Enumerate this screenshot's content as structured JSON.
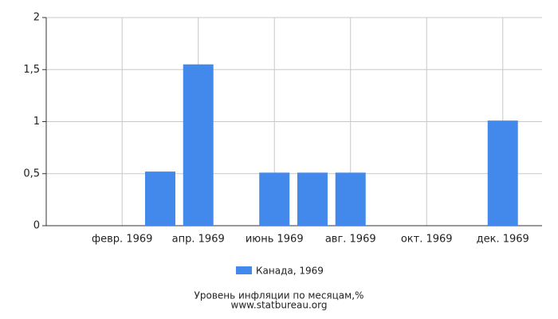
{
  "chart_data": {
    "type": "bar",
    "title": "Уровень инфляции по месяцам,%",
    "source": "www.statbureau.org",
    "categories": [
      null,
      "февр. 1969",
      null,
      "апр. 1969",
      null,
      "июнь 1969",
      null,
      "авг. 1969",
      null,
      "окт. 1969",
      null,
      "дек. 1969"
    ],
    "series": [
      {
        "name": "Канада, 1969",
        "color": "#4389ec",
        "values": [
          0,
          0,
          0.52,
          1.55,
          0,
          0.51,
          0.51,
          0.51,
          0,
          0,
          0,
          1.01
        ]
      }
    ],
    "ylim": [
      0,
      2
    ],
    "yticks": [
      0,
      {
        "value": 0.5,
        "label": "0,5"
      },
      1,
      {
        "value": 1.5,
        "label": "1,5"
      },
      2
    ],
    "grid": true
  }
}
